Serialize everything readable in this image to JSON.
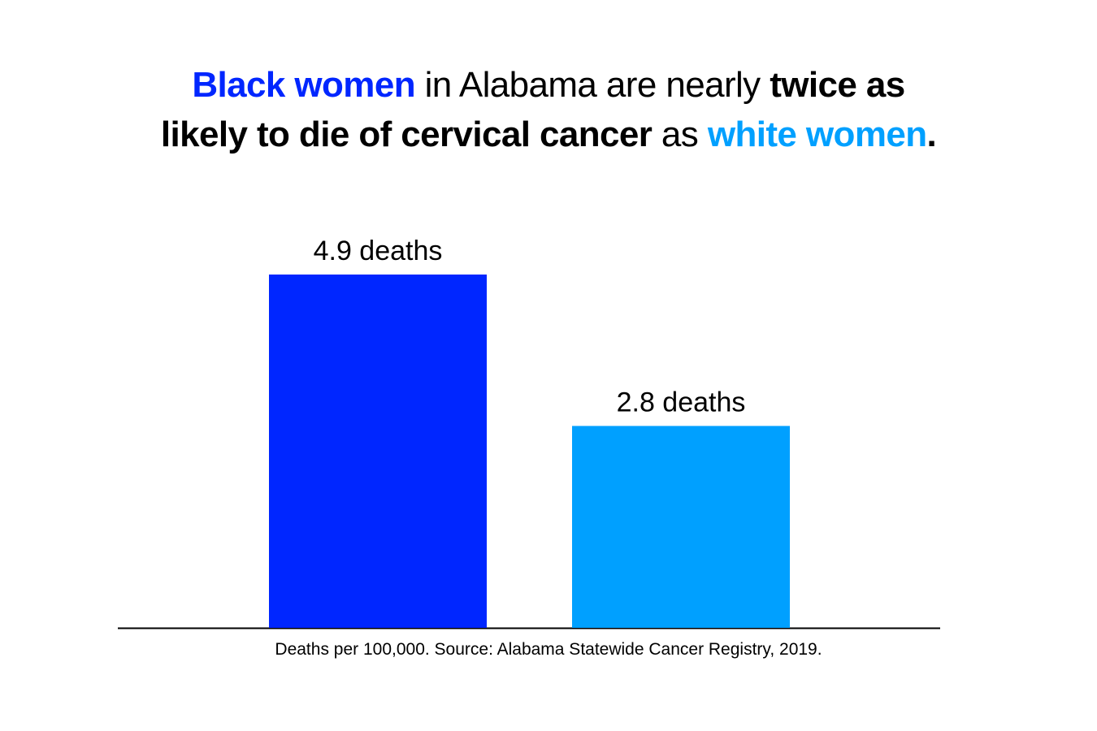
{
  "title": {
    "line1": [
      {
        "text": "Black women",
        "bold": true,
        "color": "#0026ff"
      },
      {
        "text": " in Alabama are nearly ",
        "bold": false,
        "color": "#000000"
      },
      {
        "text": "twice as",
        "bold": true,
        "color": "#000000"
      }
    ],
    "line2": [
      {
        "text": "likely to die of cervical cancer",
        "bold": true,
        "color": "#000000"
      },
      {
        "text": " as ",
        "bold": false,
        "color": "#000000"
      },
      {
        "text": "white women",
        "bold": true,
        "color": "#00a0ff"
      },
      {
        "text": ".",
        "bold": true,
        "color": "#000000"
      }
    ]
  },
  "chart_data": {
    "type": "bar",
    "categories": [
      "Black women",
      "White women"
    ],
    "values": [
      4.9,
      2.8
    ],
    "data_labels": [
      "4.9 deaths",
      "2.8 deaths"
    ],
    "colors": [
      "#0026ff",
      "#00a0ff"
    ],
    "ylim": [
      0,
      4.9
    ],
    "grid": false,
    "xlabel": "",
    "ylabel": ""
  },
  "footnote": "Deaths per 100,000. Source: Alabama Statewide Cancer Registry, 2019."
}
